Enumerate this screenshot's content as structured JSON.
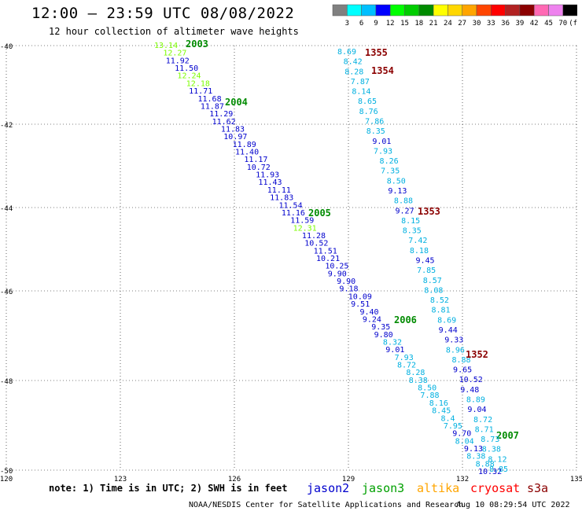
{
  "header": {
    "title": "12:00 — 23:59 UTC 08/08/2022",
    "subtitle": "12 hour collection of altimeter wave heights"
  },
  "scale": {
    "labels": [
      "3",
      "6",
      "9",
      "12",
      "15",
      "18",
      "21",
      "24",
      "27",
      "30",
      "33",
      "36",
      "39",
      "42",
      "45",
      "70",
      "(ft)"
    ],
    "colors": [
      "#808080",
      "#00ffff",
      "#00bfff",
      "#0000ff",
      "#00ff00",
      "#00cd00",
      "#008b00",
      "#ffff00",
      "#ffd700",
      "#ffa500",
      "#ff4500",
      "#ff0000",
      "#b22222",
      "#8b0000",
      "#ff69b4",
      "#ee82ee",
      "#000000"
    ]
  },
  "axes": {
    "lat_labels": [
      "-40",
      "-42",
      "-44",
      "-46",
      "-48",
      "-50"
    ],
    "lon_labels": [
      "120",
      "123",
      "126",
      "129",
      "132",
      "135"
    ]
  },
  "footer": {
    "note": "note: 1) Time is in UTC; 2) SWH is in feet",
    "credit": "NOAA/NESDIS Center for Satellite Applications and Research",
    "timestamp": "Aug 10 08:29:54 UTC 2022",
    "sats": [
      {
        "name": "jason2",
        "color": "#0000cd"
      },
      {
        "name": "jason3",
        "color": "#00a000"
      },
      {
        "name": "altika",
        "color": "#ffa500"
      },
      {
        "name": "cryosat",
        "color": "#ff0000"
      },
      {
        "name": "s3a",
        "color": "#8b0000"
      }
    ]
  },
  "tracks": {
    "track_a": {
      "time_labels": [
        {
          "text": "2003",
          "color": "#008b00"
        },
        {
          "text": "2004",
          "color": "#008b00"
        },
        {
          "text": "2005",
          "color": "#008b00"
        },
        {
          "text": "2006",
          "color": "#008b00"
        },
        {
          "text": "2007",
          "color": "#008b00"
        }
      ],
      "values": [
        {
          "v": "13.14",
          "c": "#7cfc00"
        },
        {
          "v": "12.27",
          "c": "#7cfc00"
        },
        {
          "v": "11.92",
          "c": "#0000cd"
        },
        {
          "v": "11.50",
          "c": "#0000cd"
        },
        {
          "v": "12.24",
          "c": "#7cfc00"
        },
        {
          "v": "12.18",
          "c": "#7cfc00"
        },
        {
          "v": "11.71",
          "c": "#0000cd"
        },
        {
          "v": "11.68",
          "c": "#0000cd"
        },
        {
          "v": "11.87",
          "c": "#0000cd"
        },
        {
          "v": "11.29",
          "c": "#0000cd"
        },
        {
          "v": "11.62",
          "c": "#0000cd"
        },
        {
          "v": "11.83",
          "c": "#0000cd"
        },
        {
          "v": "10.97",
          "c": "#0000cd"
        },
        {
          "v": "11.89",
          "c": "#0000cd"
        },
        {
          "v": "11.40",
          "c": "#0000cd"
        },
        {
          "v": "11.17",
          "c": "#0000cd"
        },
        {
          "v": "10.72",
          "c": "#0000cd"
        },
        {
          "v": "11.93",
          "c": "#0000cd"
        },
        {
          "v": "11.43",
          "c": "#0000cd"
        },
        {
          "v": "11.11",
          "c": "#0000cd"
        },
        {
          "v": "11.83",
          "c": "#0000cd"
        },
        {
          "v": "11.54",
          "c": "#0000cd"
        },
        {
          "v": "11.16",
          "c": "#0000cd"
        },
        {
          "v": "11.59",
          "c": "#0000cd"
        },
        {
          "v": "12.31",
          "c": "#7cfc00"
        },
        {
          "v": "11.28",
          "c": "#0000cd"
        },
        {
          "v": "10.52",
          "c": "#0000cd"
        },
        {
          "v": "11.51",
          "c": "#0000cd"
        },
        {
          "v": "10.21",
          "c": "#0000cd"
        },
        {
          "v": "10.25",
          "c": "#0000cd"
        },
        {
          "v": "9.90",
          "c": "#0000cd"
        },
        {
          "v": "9.90",
          "c": "#0000cd"
        },
        {
          "v": "9.18",
          "c": "#0000cd"
        },
        {
          "v": "10.09",
          "c": "#0000cd"
        },
        {
          "v": "9.51",
          "c": "#0000cd"
        },
        {
          "v": "9.40",
          "c": "#0000cd"
        },
        {
          "v": "9.24",
          "c": "#0000cd"
        },
        {
          "v": "9.35",
          "c": "#0000cd"
        },
        {
          "v": "9.80",
          "c": "#0000cd"
        },
        {
          "v": "8.32",
          "c": "#00b0e0"
        },
        {
          "v": "9.01",
          "c": "#0000cd"
        },
        {
          "v": "7.93",
          "c": "#00b0e0"
        },
        {
          "v": "8.72",
          "c": "#00b0e0"
        },
        {
          "v": "8.28",
          "c": "#00b0e0"
        },
        {
          "v": "8.38",
          "c": "#00b0e0"
        },
        {
          "v": "8.50",
          "c": "#00b0e0"
        },
        {
          "v": "7.88",
          "c": "#00b0e0"
        },
        {
          "v": "8.16",
          "c": "#00b0e0"
        },
        {
          "v": "8.45",
          "c": "#00b0e0"
        },
        {
          "v": "8.4",
          "c": "#00b0e0"
        },
        {
          "v": "7.95",
          "c": "#00b0e0"
        },
        {
          "v": "9.70",
          "c": "#0000cd"
        },
        {
          "v": "8.04",
          "c": "#00b0e0"
        },
        {
          "v": "9.13",
          "c": "#0000cd"
        },
        {
          "v": "8.38",
          "c": "#00b0e0"
        },
        {
          "v": "8.88",
          "c": "#00b0e0"
        },
        {
          "v": "10.32",
          "c": "#0000cd"
        }
      ]
    },
    "track_b": {
      "time_labels": [
        {
          "text": "1355",
          "color": "#8b0000"
        },
        {
          "text": "1354",
          "color": "#8b0000"
        },
        {
          "text": "1353",
          "color": "#8b0000"
        },
        {
          "text": "1352",
          "color": "#8b0000"
        }
      ],
      "values": [
        {
          "v": "8.69",
          "c": "#00b0e0"
        },
        {
          "v": "8.42",
          "c": "#00b0e0"
        },
        {
          "v": "8.28",
          "c": "#00b0e0"
        },
        {
          "v": "7.87",
          "c": "#00b0e0"
        },
        {
          "v": "8.14",
          "c": "#00b0e0"
        },
        {
          "v": "8.65",
          "c": "#00b0e0"
        },
        {
          "v": "8.76",
          "c": "#00b0e0"
        },
        {
          "v": "7.86",
          "c": "#00b0e0"
        },
        {
          "v": "8.35",
          "c": "#00b0e0"
        },
        {
          "v": "9.01",
          "c": "#0000cd"
        },
        {
          "v": "7.93",
          "c": "#00b0e0"
        },
        {
          "v": "8.26",
          "c": "#00b0e0"
        },
        {
          "v": "7.35",
          "c": "#00b0e0"
        },
        {
          "v": "8.50",
          "c": "#00b0e0"
        },
        {
          "v": "9.13",
          "c": "#0000cd"
        },
        {
          "v": "8.88",
          "c": "#00b0e0"
        },
        {
          "v": "9.27",
          "c": "#0000cd"
        },
        {
          "v": "8.15",
          "c": "#00b0e0"
        },
        {
          "v": "8.35",
          "c": "#00b0e0"
        },
        {
          "v": "7.42",
          "c": "#00b0e0"
        },
        {
          "v": "8.18",
          "c": "#00b0e0"
        },
        {
          "v": "9.45",
          "c": "#0000cd"
        },
        {
          "v": "7.85",
          "c": "#00b0e0"
        },
        {
          "v": "8.57",
          "c": "#00b0e0"
        },
        {
          "v": "8.08",
          "c": "#00b0e0"
        },
        {
          "v": "8.52",
          "c": "#00b0e0"
        },
        {
          "v": "8.81",
          "c": "#00b0e0"
        },
        {
          "v": "8.69",
          "c": "#00b0e0"
        },
        {
          "v": "9.44",
          "c": "#0000cd"
        },
        {
          "v": "9.33",
          "c": "#0000cd"
        },
        {
          "v": "8.96",
          "c": "#00b0e0"
        },
        {
          "v": "8.88",
          "c": "#00b0e0"
        },
        {
          "v": "9.65",
          "c": "#0000cd"
        },
        {
          "v": "10.52",
          "c": "#0000cd"
        },
        {
          "v": "9.48",
          "c": "#0000cd"
        },
        {
          "v": "8.89",
          "c": "#00b0e0"
        },
        {
          "v": "9.04",
          "c": "#0000cd"
        },
        {
          "v": "8.72",
          "c": "#00b0e0"
        },
        {
          "v": "8.71",
          "c": "#00b0e0"
        },
        {
          "v": "8.73",
          "c": "#00b0e0"
        },
        {
          "v": "8.38",
          "c": "#00b0e0"
        },
        {
          "v": "8.12",
          "c": "#00b0e0"
        },
        {
          "v": "8.85",
          "c": "#00b0e0"
        }
      ]
    }
  }
}
